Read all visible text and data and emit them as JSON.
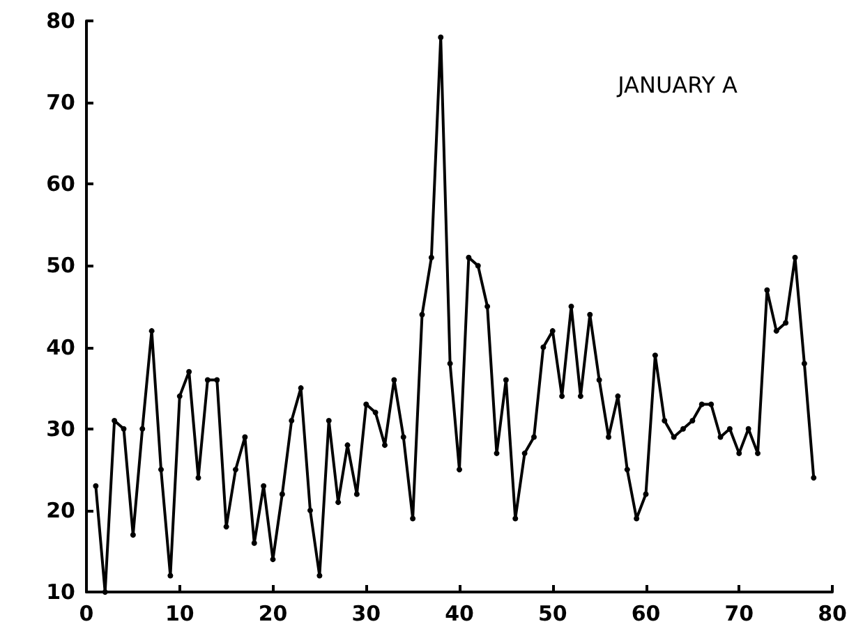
{
  "chart_data": {
    "type": "line",
    "title": "JANUARY A",
    "x": [
      1,
      2,
      3,
      4,
      5,
      6,
      7,
      8,
      9,
      10,
      11,
      12,
      13,
      14,
      15,
      16,
      17,
      18,
      19,
      20,
      21,
      22,
      23,
      24,
      25,
      26,
      27,
      28,
      29,
      30,
      31,
      32,
      33,
      34,
      35,
      36,
      37,
      38,
      39,
      40,
      41,
      42,
      43,
      44,
      45,
      46,
      47,
      48,
      49,
      50,
      51,
      52,
      53,
      54,
      55,
      56,
      57,
      58,
      59,
      60,
      61,
      62,
      63,
      64,
      65,
      66,
      67,
      68,
      69,
      70,
      71,
      72,
      73,
      74,
      75,
      76,
      77,
      78
    ],
    "series": [
      {
        "color": "#000000",
        "values": [
          23,
          10,
          31,
          30,
          17,
          30,
          42,
          25,
          12,
          34,
          37,
          24,
          36,
          36,
          18,
          25,
          29,
          16,
          23,
          14,
          22,
          31,
          35,
          20,
          12,
          31,
          21,
          28,
          22,
          33,
          32,
          28,
          36,
          29,
          19,
          44,
          51,
          78,
          38,
          25,
          51,
          50,
          45,
          27,
          36,
          19,
          27,
          29,
          40,
          42,
          34,
          45,
          34,
          44,
          36,
          29,
          34,
          25,
          19,
          22,
          39,
          31,
          29,
          30,
          31,
          33,
          33,
          29,
          30,
          27,
          30,
          27,
          47,
          42,
          43,
          51,
          38,
          24
        ]
      }
    ],
    "xlim": [
      0,
      80
    ],
    "xticks": [
      0,
      10,
      20,
      30,
      40,
      50,
      60,
      70,
      80
    ],
    "ylim": [
      10,
      80
    ],
    "yticks": [
      10,
      20,
      30,
      40,
      50,
      60,
      70,
      80
    ],
    "grid": false,
    "marker": "circle",
    "line_style": "solid"
  }
}
